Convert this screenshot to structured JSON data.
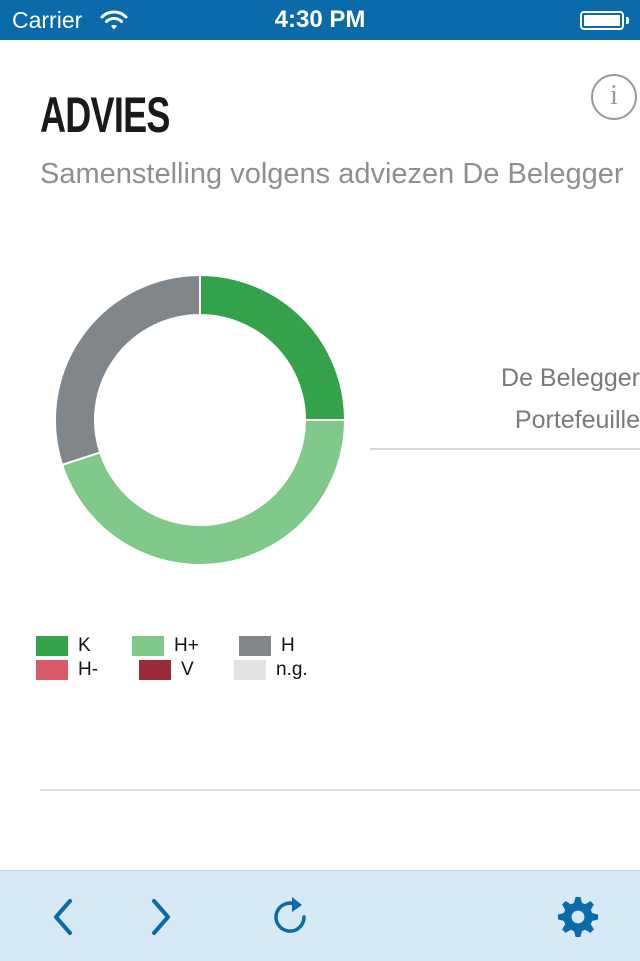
{
  "status_bar": {
    "carrier": "Carrier",
    "time": "4:30 PM",
    "wifi_icon": "wifi-icon",
    "battery_icon": "battery-icon",
    "battery_level": 1.0
  },
  "header": {
    "title": "ADVIES",
    "info_icon_glyph": "i",
    "subtitle": "Samenstelling volgens adviezen De Belegger"
  },
  "chart_data": {
    "type": "pie",
    "style": "donut",
    "series": [
      {
        "label": "K",
        "value": 25,
        "color": "#34a24a"
      },
      {
        "label": "H+",
        "value": 45,
        "color": "#80c98b"
      },
      {
        "label": "H",
        "value": 30,
        "color": "#81868b"
      },
      {
        "label": "H-",
        "value": 0,
        "color": "#d95b6b"
      },
      {
        "label": "V",
        "value": 0,
        "color": "#9b2a3a"
      },
      {
        "label": "n.g.",
        "value": 0,
        "color": "#e4e4e4"
      }
    ],
    "legend": [
      "K",
      "H+",
      "H",
      "H-",
      "V",
      "n.g."
    ]
  },
  "portfolio_label": {
    "line1": "De Belegger",
    "line2": "Portefeuille"
  },
  "toolbar": {
    "back_icon": "chevron-left-icon",
    "forward_icon": "chevron-right-icon",
    "refresh_icon": "refresh-icon",
    "settings_icon": "gear-icon"
  },
  "colors": {
    "status_bar": "#0a6aaa",
    "toolbar_bg": "#d6e9f5",
    "toolbar_icon": "#0a6aaa"
  }
}
